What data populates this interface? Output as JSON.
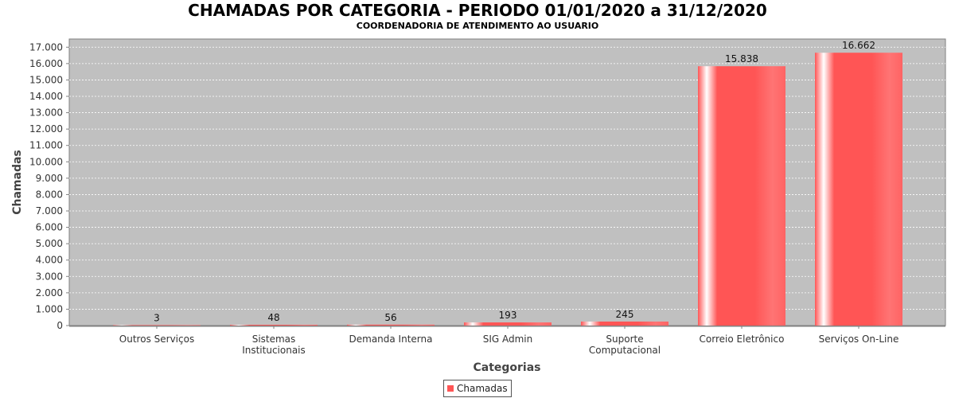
{
  "chart_data": {
    "type": "bar",
    "title": "CHAMADAS POR CATEGORIA - PERIODO 01/01/2020 a 31/12/2020",
    "subtitle": "COORDENADORIA DE ATENDIMENTO AO USUARIO",
    "xlabel": "Categorias",
    "ylabel": "Chamadas",
    "categories": [
      [
        "Outros Serviços"
      ],
      [
        "Sistemas",
        "Institucionais"
      ],
      [
        "Demanda Interna"
      ],
      [
        "SIG Admin"
      ],
      [
        "Suporte",
        "Computacional"
      ],
      [
        "Correio Eletrônico"
      ],
      [
        "Serviços On-Line"
      ]
    ],
    "series": [
      {
        "name": "Chamadas",
        "values": [
          3,
          48,
          56,
          193,
          245,
          15838,
          16662
        ],
        "value_labels": [
          "3",
          "48",
          "56",
          "193",
          "245",
          "15.838",
          "16.662"
        ]
      }
    ],
    "ylim": [
      0,
      17500
    ],
    "yticks": [
      0,
      1000,
      2000,
      3000,
      4000,
      5000,
      6000,
      7000,
      8000,
      9000,
      10000,
      11000,
      12000,
      13000,
      14000,
      15000,
      16000,
      17000
    ],
    "ytick_labels": [
      "0",
      "1.000",
      "2.000",
      "3.000",
      "4.000",
      "5.000",
      "6.000",
      "7.000",
      "8.000",
      "9.000",
      "10.000",
      "11.000",
      "12.000",
      "13.000",
      "14.000",
      "15.000",
      "16.000",
      "17.000"
    ],
    "grid": true,
    "legend_position": "bottom",
    "colors": {
      "plot_background": "#c0c0c0",
      "bar": "#ff5555",
      "bar_highlight": "#ffffff",
      "grid": "#ffffff"
    }
  }
}
